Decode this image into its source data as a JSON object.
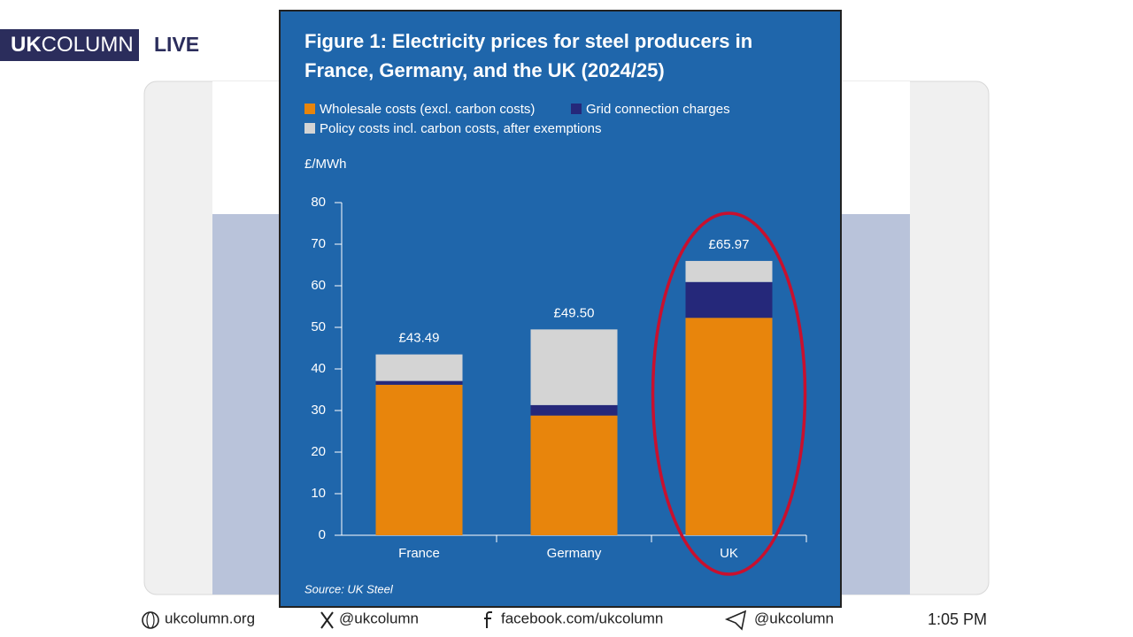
{
  "header": {
    "logo_bold": "UK",
    "logo_rest": "COLUMN",
    "live": "LIVE"
  },
  "chart_data": {
    "type": "bar",
    "stacked": true,
    "title": "Figure 1: Electricity prices for steel producers in France, Germany, and the UK (2024/25)",
    "ylabel": "£/MWh",
    "categories": [
      "France",
      "Germany",
      "UK"
    ],
    "series": [
      {
        "name": "Wholesale costs (excl. carbon costs)",
        "color": "#e8850c",
        "values": [
          36.2,
          28.8,
          52.3
        ]
      },
      {
        "name": "Grid connection charges",
        "color": "#25287a",
        "values": [
          0.9,
          2.5,
          8.6
        ]
      },
      {
        "name": "Policy costs incl. carbon costs, after exemptions",
        "color": "#d4d4d4",
        "values": [
          6.39,
          18.2,
          5.07
        ]
      }
    ],
    "totals": {
      "values": [
        43.49,
        49.5,
        65.97
      ],
      "value_labels": [
        "£43.49",
        "£49.50",
        "£65.97"
      ]
    },
    "ylim": [
      0,
      80
    ],
    "yticks": [
      0,
      10,
      20,
      30,
      40,
      50,
      60,
      70,
      80
    ],
    "source": "Source: UK Steel"
  },
  "footer": {
    "website": "ukcolumn.org",
    "x_handle": "@ukcolumn",
    "facebook": "facebook.com/ukcolumn",
    "telegram": "@ukcolumn",
    "time": "1:05 PM"
  }
}
